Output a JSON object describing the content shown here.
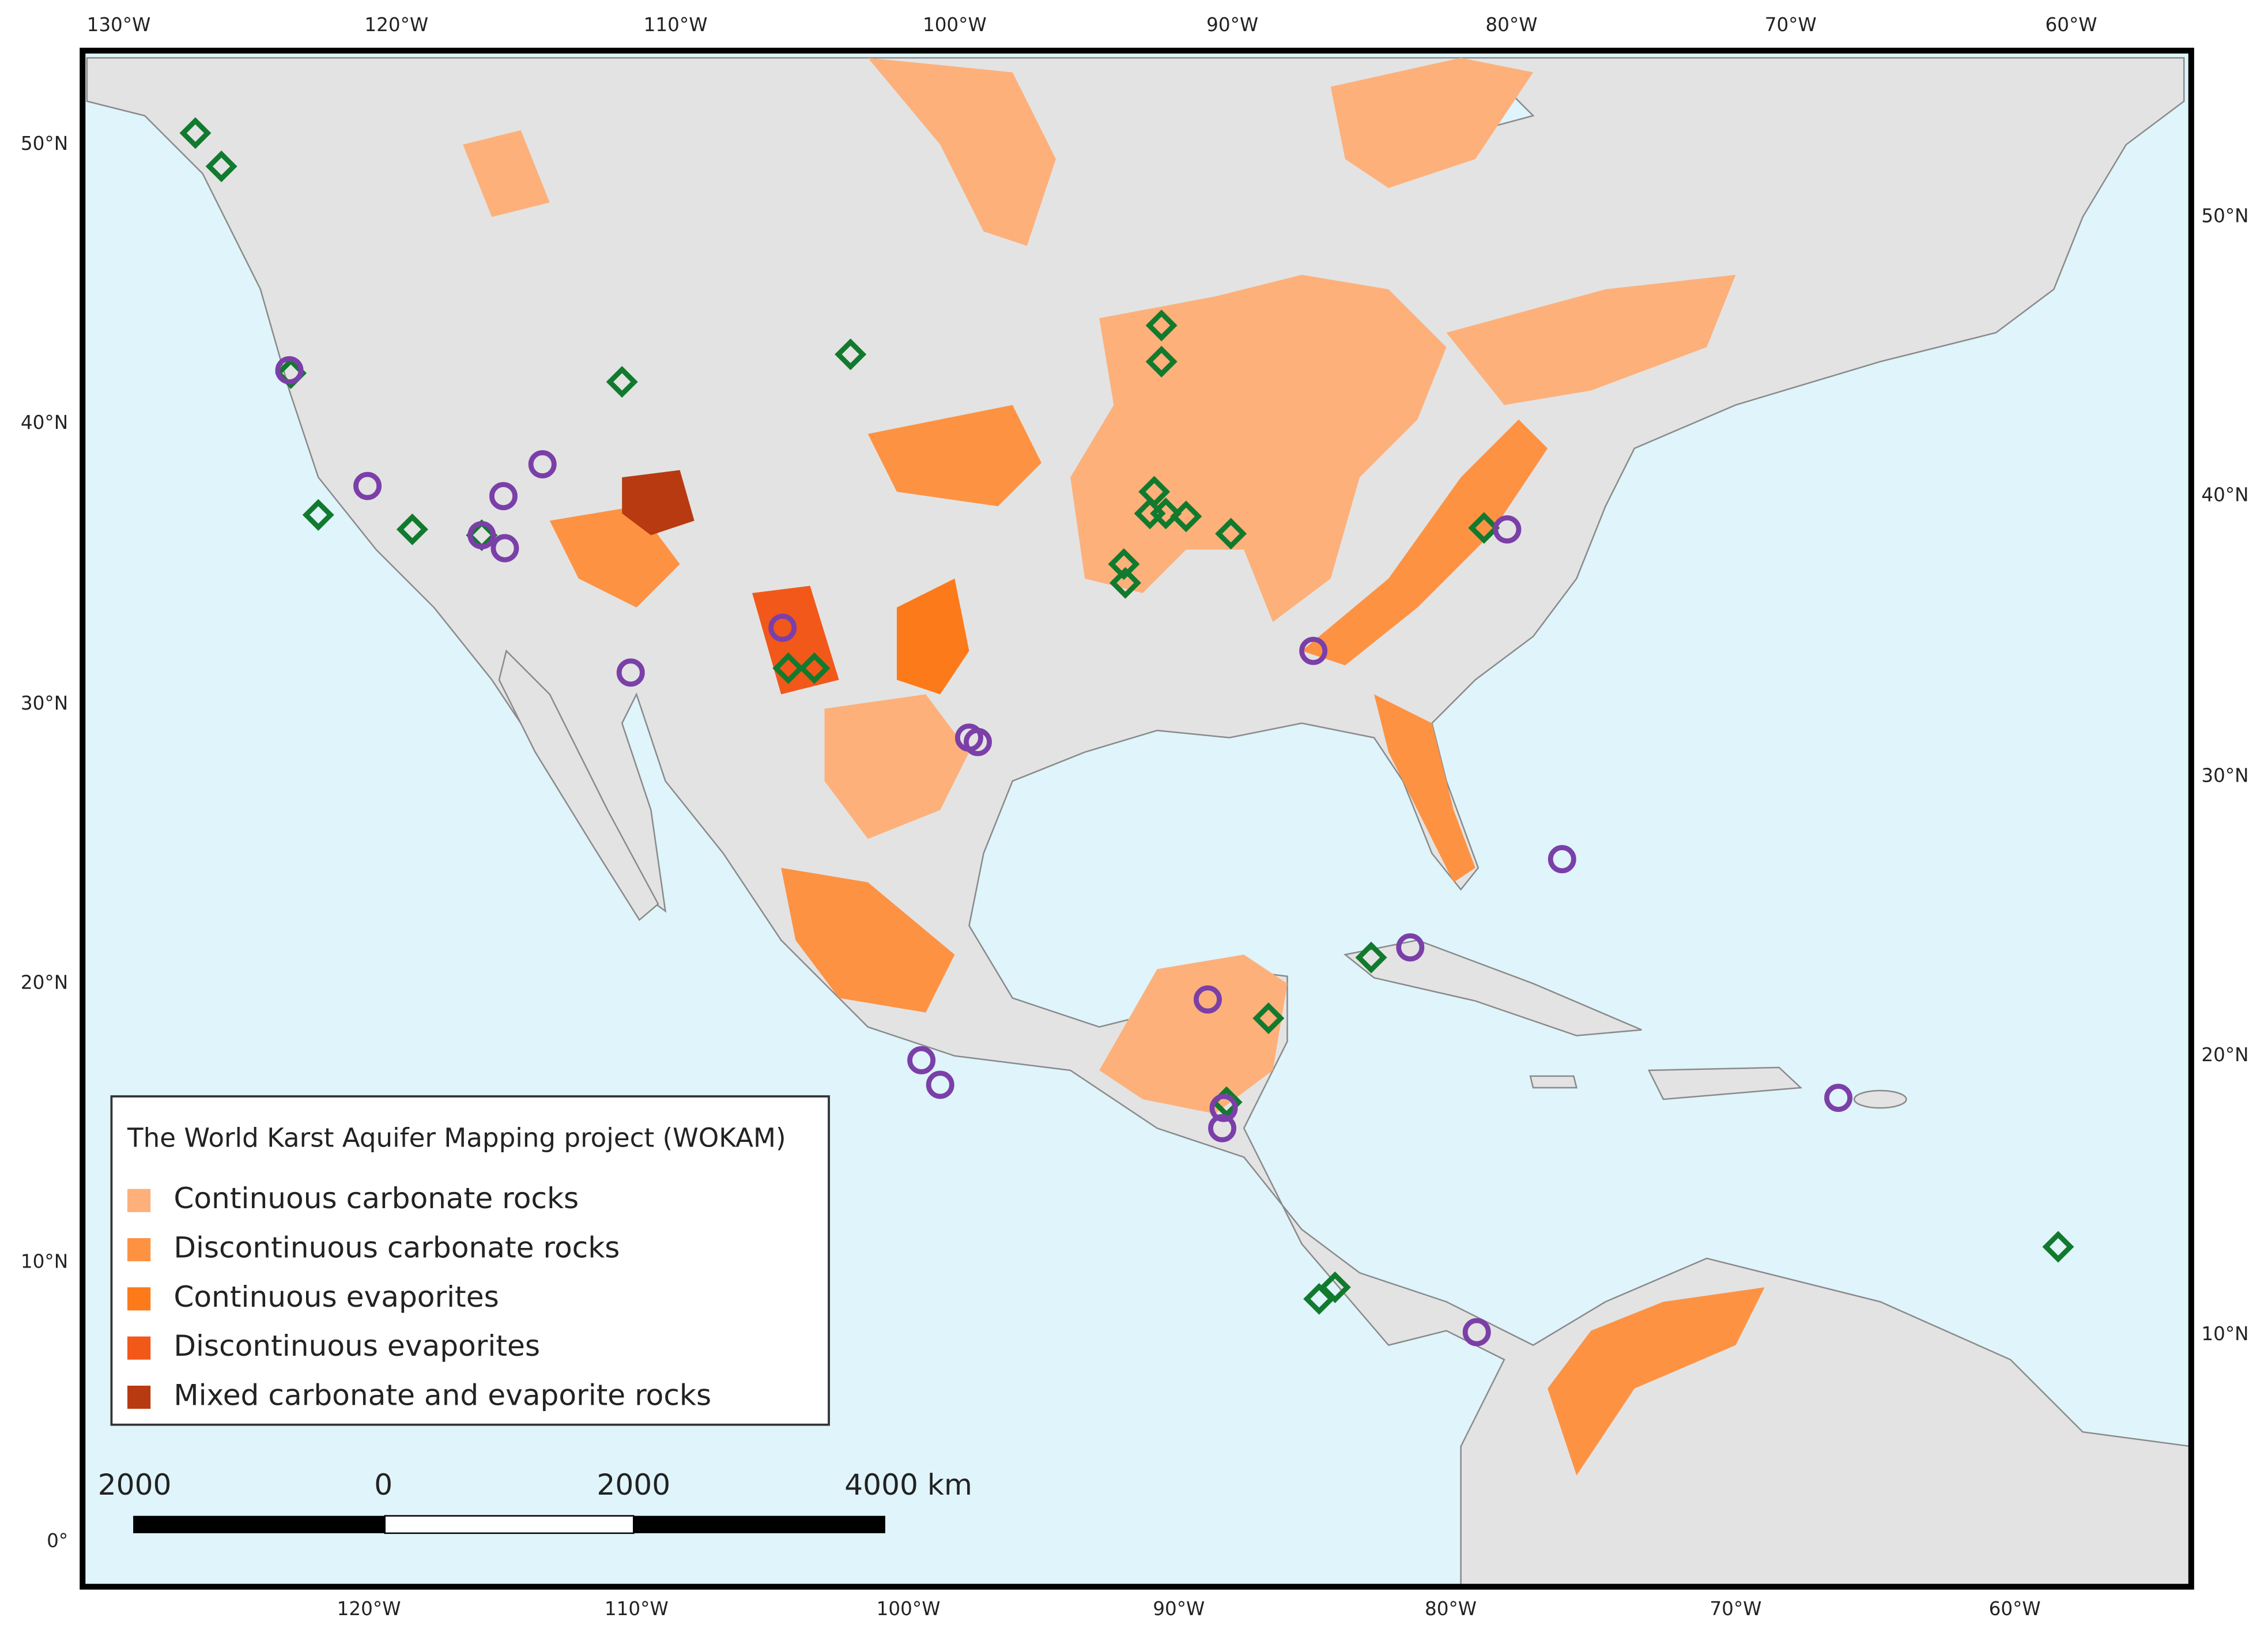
{
  "map": {
    "top_axis_labels": [
      "130°W",
      "120°W",
      "110°W",
      "100°W",
      "90°W",
      "80°W",
      "70°W",
      "60°W"
    ],
    "bottom_axis_labels": [
      "120°W",
      "110°W",
      "100°W",
      "90°W",
      "80°W",
      "70°W",
      "60°W"
    ],
    "left_axis_labels": [
      "50°N",
      "40°N",
      "30°N",
      "20°N",
      "10°N",
      "0°"
    ],
    "right_axis_labels": [
      "50°N",
      "40°N",
      "30°N",
      "20°N",
      "10°N"
    ],
    "legend": {
      "title": "The World Karst Aquifer Mapping project (WOKAM)",
      "items": [
        {
          "label": "Continuous carbonate rocks",
          "color": "#fdb07a"
        },
        {
          "label": "Discontinuous carbonate rocks",
          "color": "#fd9243"
        },
        {
          "label": "Continuous evaporites",
          "color": "#fd7a1a"
        },
        {
          "label": "Discontinuous evaporites",
          "color": "#f2581a"
        },
        {
          "label": "Mixed carbonate and evaporite rocks",
          "color": "#b83a10"
        }
      ]
    },
    "scale_bar": {
      "labels": [
        "2000",
        "0",
        "2000",
        "4000 km"
      ]
    }
  }
}
